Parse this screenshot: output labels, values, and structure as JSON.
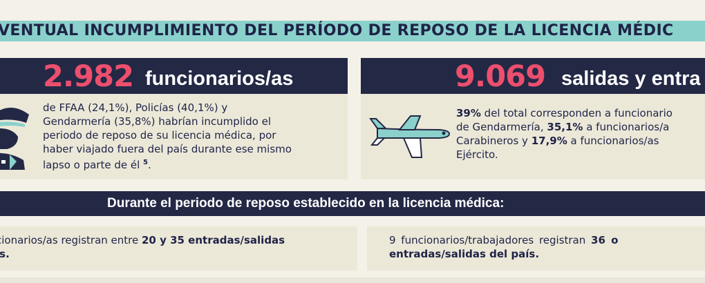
{
  "banner": {
    "title": "VENTUAL INCUMPLIMIENTO DEL PERÍODO DE REPOSO DE LA LICENCIA MÉDIC"
  },
  "left_card": {
    "number": "2.982",
    "label": "funcionarios/as",
    "line1": "de FFAA (24,1%), Policías (40,1%) y",
    "line2": "Gendarmería (35,8%) habrían incumplido el",
    "line3": "periodo de reposo de su licencia médica, por",
    "line4": "haber viajado fuera del país durante ese mismo",
    "line5_text": "lapso o parte de él ",
    "line5_sup": "5",
    "line5_end": "."
  },
  "right_card": {
    "number": "9.069",
    "label": "salidas y entra",
    "l1_bold": "39%",
    "l1_rest": " del total corresponden a funcionario",
    "l2_text": "de Gendarmería, ",
    "l2_bold": "35,1%",
    "l2_rest": " a funcionarios/a",
    "l3_text": "Carabineros y ",
    "l3_bold": "17,9%",
    "l3_rest": " a funcionarios/as",
    "l4_text": "Ejército."
  },
  "strip": {
    "title": "Durante el periodo de reposo establecido en la licencia médica:"
  },
  "bottom_left": {
    "l1_text": "cionarios/as registran entre ",
    "l1_bold": "20 y 35 entradas/salidas",
    "l2_bold": "ís."
  },
  "bottom_right": {
    "l1_text": "9 funcionarios/trabajadores registran ",
    "l1_bold": "36 o",
    "l2_bold": "entradas/salidas del país."
  },
  "icons": {
    "officer": "police-officer-icon",
    "plane": "airplane-icon"
  },
  "colors": {
    "accent_pink": "#ec4f6e",
    "teal": "#8ad1cb",
    "navy": "#232845",
    "cream": "#ece8d8"
  }
}
